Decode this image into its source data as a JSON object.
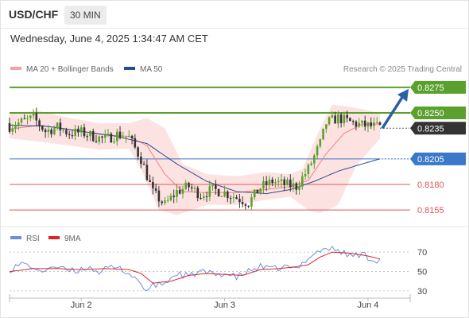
{
  "header": {
    "symbol": "USD/CHF",
    "timeframe": "30 MIN",
    "datetime": "Wednesday, June 4, 2025 1:34:47 AM CET"
  },
  "colors": {
    "resistance": "#5aa02c",
    "support": "#e05555",
    "pivot": "#3a78c9",
    "current": "#333333",
    "arrow": "#2b5fa3",
    "candle_up": "#5aa02c",
    "candle_down": "#333333",
    "bollinger_fill": "#fde2e2",
    "ma20": "#f08080",
    "ma50": "#2b4c8c",
    "rsi": "#6d8fd8",
    "rsi_ma": "#d9262b"
  },
  "chart_data": [
    {
      "type": "candlestick",
      "legend": [
        {
          "label": "MA 20 + Bollinger Bands",
          "color": "#f4a3a3"
        },
        {
          "label": "MA 50",
          "color": "#2b4c8c"
        }
      ],
      "credit": "Research © 2025 Trading Central",
      "ylim": [
        0.8145,
        0.8285
      ],
      "levels": [
        {
          "value": 0.8275,
          "label": "0.8275",
          "kind": "resistance"
        },
        {
          "value": 0.825,
          "label": "0.8250",
          "kind": "resistance"
        },
        {
          "value": 0.8235,
          "label": "0.8235",
          "kind": "current"
        },
        {
          "value": 0.8205,
          "label": "0.8205",
          "kind": "pivot"
        },
        {
          "value": 0.818,
          "label": "0.8180",
          "kind": "support"
        },
        {
          "value": 0.8155,
          "label": "0.8155",
          "kind": "support"
        }
      ],
      "projection": {
        "from": 0.8235,
        "to": 0.8275
      },
      "x_ticks": [
        {
          "label": "Jun 2",
          "index": 24
        },
        {
          "label": "Jun 3",
          "index": 72
        },
        {
          "label": "Jun 4",
          "index": 120
        }
      ],
      "n_bars": 125,
      "close_anchors": [
        [
          0,
          0.8237
        ],
        [
          4,
          0.8241
        ],
        [
          8,
          0.8245
        ],
        [
          12,
          0.8232
        ],
        [
          16,
          0.8236
        ],
        [
          20,
          0.823
        ],
        [
          24,
          0.8231
        ],
        [
          28,
          0.8227
        ],
        [
          32,
          0.8224
        ],
        [
          36,
          0.8229
        ],
        [
          40,
          0.8226
        ],
        [
          44,
          0.8205
        ],
        [
          48,
          0.8172
        ],
        [
          52,
          0.816
        ],
        [
          56,
          0.8173
        ],
        [
          60,
          0.8178
        ],
        [
          64,
          0.817
        ],
        [
          68,
          0.8175
        ],
        [
          72,
          0.8172
        ],
        [
          76,
          0.8167
        ],
        [
          80,
          0.8162
        ],
        [
          84,
          0.8177
        ],
        [
          88,
          0.8183
        ],
        [
          92,
          0.818
        ],
        [
          96,
          0.8178
        ],
        [
          100,
          0.8195
        ],
        [
          104,
          0.822
        ],
        [
          106,
          0.824
        ],
        [
          110,
          0.8245
        ],
        [
          114,
          0.8241
        ],
        [
          118,
          0.8238
        ],
        [
          124,
          0.8236
        ]
      ],
      "bollinger": {
        "upper": [
          [
            0,
            0.825
          ],
          [
            10,
            0.8252
          ],
          [
            20,
            0.8245
          ],
          [
            30,
            0.824
          ],
          [
            40,
            0.824
          ],
          [
            46,
            0.8245
          ],
          [
            52,
            0.8235
          ],
          [
            58,
            0.82
          ],
          [
            66,
            0.819
          ],
          [
            76,
            0.8188
          ],
          [
            86,
            0.8192
          ],
          [
            94,
            0.819
          ],
          [
            98,
            0.8195
          ],
          [
            104,
            0.8235
          ],
          [
            108,
            0.8258
          ],
          [
            114,
            0.8256
          ],
          [
            124,
            0.825
          ]
        ],
        "lower": [
          [
            0,
            0.8225
          ],
          [
            10,
            0.8222
          ],
          [
            20,
            0.8218
          ],
          [
            30,
            0.8214
          ],
          [
            40,
            0.8215
          ],
          [
            44,
            0.8195
          ],
          [
            50,
            0.8155
          ],
          [
            56,
            0.815
          ],
          [
            66,
            0.816
          ],
          [
            76,
            0.816
          ],
          [
            86,
            0.8165
          ],
          [
            94,
            0.8168
          ],
          [
            100,
            0.8155
          ],
          [
            104,
            0.8152
          ],
          [
            110,
            0.816
          ],
          [
            116,
            0.8198
          ],
          [
            124,
            0.8225
          ]
        ]
      },
      "ma20": [
        [
          0,
          0.8234
        ],
        [
          10,
          0.8238
        ],
        [
          20,
          0.8234
        ],
        [
          30,
          0.8229
        ],
        [
          40,
          0.8227
        ],
        [
          46,
          0.8218
        ],
        [
          52,
          0.819
        ],
        [
          58,
          0.8173
        ],
        [
          66,
          0.8172
        ],
        [
          76,
          0.8172
        ],
        [
          86,
          0.8175
        ],
        [
          94,
          0.8178
        ],
        [
          100,
          0.8184
        ],
        [
          106,
          0.821
        ],
        [
          112,
          0.823
        ],
        [
          118,
          0.8239
        ],
        [
          124,
          0.8239
        ]
      ],
      "ma50": [
        [
          0,
          0.8238
        ],
        [
          12,
          0.8237
        ],
        [
          24,
          0.8232
        ],
        [
          36,
          0.8227
        ],
        [
          46,
          0.822
        ],
        [
          56,
          0.82
        ],
        [
          66,
          0.8183
        ],
        [
          76,
          0.8173
        ],
        [
          86,
          0.8171
        ],
        [
          94,
          0.8175
        ],
        [
          102,
          0.8183
        ],
        [
          110,
          0.8193
        ],
        [
          118,
          0.82
        ],
        [
          124,
          0.8205
        ]
      ]
    },
    {
      "type": "line",
      "legend": [
        {
          "label": "RSI",
          "color": "#6d8fd8"
        },
        {
          "label": "9MA",
          "color": "#d9262b"
        }
      ],
      "ylim": [
        25,
        80
      ],
      "y_ticks": [
        70,
        50,
        30
      ],
      "series": [
        {
          "name": "RSI",
          "anchors": [
            [
              0,
              52
            ],
            [
              4,
              58
            ],
            [
              8,
              55
            ],
            [
              10,
              48
            ],
            [
              14,
              56
            ],
            [
              18,
              52
            ],
            [
              22,
              50
            ],
            [
              26,
              55
            ],
            [
              30,
              50
            ],
            [
              34,
              54
            ],
            [
              38,
              52
            ],
            [
              42,
              44
            ],
            [
              46,
              30
            ],
            [
              48,
              35
            ],
            [
              52,
              38
            ],
            [
              56,
              48
            ],
            [
              60,
              45
            ],
            [
              64,
              50
            ],
            [
              68,
              47
            ],
            [
              72,
              48
            ],
            [
              76,
              44
            ],
            [
              80,
              50
            ],
            [
              84,
              55
            ],
            [
              88,
              52
            ],
            [
              92,
              55
            ],
            [
              96,
              52
            ],
            [
              100,
              65
            ],
            [
              104,
              72
            ],
            [
              106,
              74
            ],
            [
              110,
              72
            ],
            [
              114,
              66
            ],
            [
              118,
              68
            ],
            [
              122,
              62
            ],
            [
              124,
              62
            ]
          ]
        },
        {
          "name": "9MA",
          "anchors": [
            [
              0,
              50
            ],
            [
              8,
              53
            ],
            [
              16,
              53
            ],
            [
              24,
              52
            ],
            [
              32,
              53
            ],
            [
              40,
              52
            ],
            [
              44,
              48
            ],
            [
              48,
              38
            ],
            [
              54,
              40
            ],
            [
              60,
              46
            ],
            [
              66,
              48
            ],
            [
              72,
              47
            ],
            [
              78,
              46
            ],
            [
              84,
              52
            ],
            [
              90,
              53
            ],
            [
              96,
              55
            ],
            [
              100,
              57
            ],
            [
              104,
              65
            ],
            [
              108,
              70
            ],
            [
              114,
              69
            ],
            [
              120,
              66
            ],
            [
              124,
              63
            ]
          ]
        }
      ]
    }
  ]
}
